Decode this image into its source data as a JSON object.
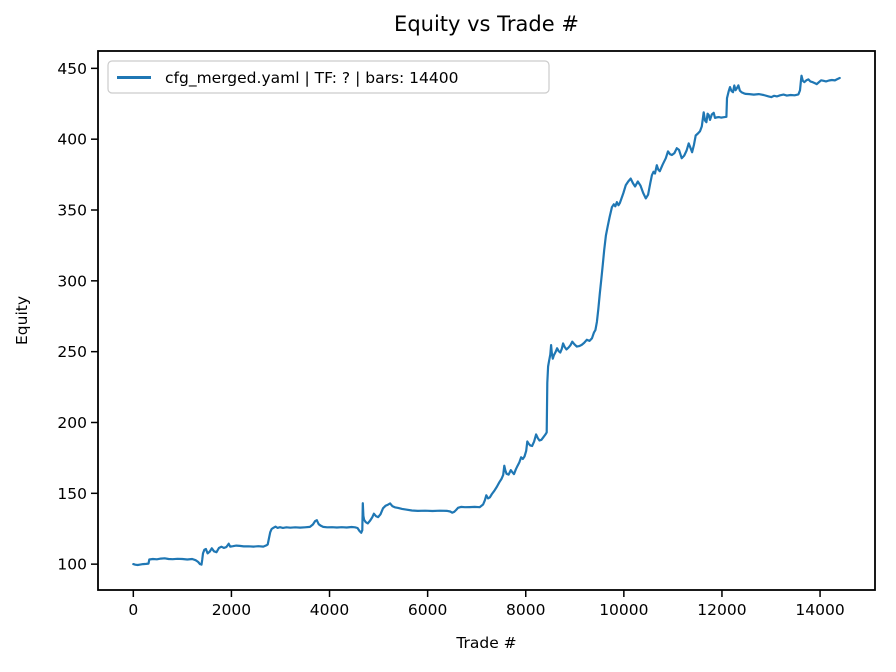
{
  "colors": {
    "line": "#1f77b4",
    "spine": "#000000",
    "text": "#000000",
    "legend_border": "#cccccc",
    "background": "#ffffff"
  },
  "chart_data": {
    "type": "line",
    "title": "Equity vs Trade #",
    "xlabel": "Trade #",
    "ylabel": "Equity",
    "grid": false,
    "legend_position": "upper-left",
    "legend": [
      {
        "label": "cfg_merged.yaml | TF: ? | bars: 14400",
        "color": "#1f77b4"
      }
    ],
    "xlim": [
      -720,
      15120
    ],
    "ylim": [
      81.75,
      462.25
    ],
    "x_ticks": [
      0,
      2000,
      4000,
      6000,
      8000,
      10000,
      12000,
      14000
    ],
    "y_ticks": [
      100,
      150,
      200,
      250,
      300,
      350,
      400,
      450
    ],
    "series": [
      {
        "name": "cfg_merged.yaml | TF: ? | bars: 14400",
        "color": "#1f77b4",
        "points": [
          [
            0,
            100
          ],
          [
            40,
            99.6
          ],
          [
            90,
            99.4
          ],
          [
            140,
            99.7
          ],
          [
            200,
            100
          ],
          [
            260,
            100.2
          ],
          [
            310,
            100.4
          ],
          [
            325,
            103.3
          ],
          [
            400,
            103.6
          ],
          [
            480,
            103.4
          ],
          [
            560,
            103.9
          ],
          [
            640,
            104.1
          ],
          [
            720,
            103.6
          ],
          [
            800,
            103.5
          ],
          [
            900,
            103.8
          ],
          [
            1000,
            103.6
          ],
          [
            1100,
            103.3
          ],
          [
            1200,
            103.6
          ],
          [
            1270,
            102.8
          ],
          [
            1320,
            101.6
          ],
          [
            1360,
            100
          ],
          [
            1390,
            99.7
          ],
          [
            1405,
            103
          ],
          [
            1420,
            107.6
          ],
          [
            1450,
            110.2
          ],
          [
            1480,
            110.7
          ],
          [
            1515,
            107.6
          ],
          [
            1560,
            108.9
          ],
          [
            1600,
            111.2
          ],
          [
            1645,
            109.1
          ],
          [
            1695,
            108.4
          ],
          [
            1745,
            111.4
          ],
          [
            1795,
            112.3
          ],
          [
            1845,
            111.5
          ],
          [
            1895,
            112
          ],
          [
            1945,
            114.4
          ],
          [
            1975,
            112.4
          ],
          [
            2030,
            112.7
          ],
          [
            2100,
            113.1
          ],
          [
            2170,
            112.9
          ],
          [
            2250,
            112.5
          ],
          [
            2350,
            112.6
          ],
          [
            2450,
            112.4
          ],
          [
            2550,
            112.7
          ],
          [
            2650,
            112.4
          ],
          [
            2710,
            113.2
          ],
          [
            2740,
            113.9
          ],
          [
            2765,
            118
          ],
          [
            2790,
            122.5
          ],
          [
            2820,
            124.8
          ],
          [
            2860,
            125.7
          ],
          [
            2900,
            126.5
          ],
          [
            2940,
            125.6
          ],
          [
            2990,
            126.1
          ],
          [
            3050,
            125.6
          ],
          [
            3120,
            126
          ],
          [
            3200,
            125.7
          ],
          [
            3300,
            126
          ],
          [
            3400,
            125.8
          ],
          [
            3500,
            126
          ],
          [
            3600,
            126.3
          ],
          [
            3660,
            128
          ],
          [
            3705,
            130.4
          ],
          [
            3740,
            131
          ],
          [
            3780,
            128.2
          ],
          [
            3825,
            127.1
          ],
          [
            3870,
            126.3
          ],
          [
            3950,
            126
          ],
          [
            4050,
            126.1
          ],
          [
            4150,
            125.9
          ],
          [
            4250,
            126.1
          ],
          [
            4350,
            125.9
          ],
          [
            4450,
            126.2
          ],
          [
            4520,
            126
          ],
          [
            4570,
            125.5
          ],
          [
            4610,
            123.4
          ],
          [
            4645,
            122.1
          ],
          [
            4668,
            124
          ],
          [
            4678,
            143
          ],
          [
            4690,
            134
          ],
          [
            4705,
            131.4
          ],
          [
            4740,
            129.6
          ],
          [
            4780,
            128.8
          ],
          [
            4830,
            130.8
          ],
          [
            4870,
            133
          ],
          [
            4905,
            135.6
          ],
          [
            4945,
            133.9
          ],
          [
            4990,
            133.2
          ],
          [
            5040,
            135.2
          ],
          [
            5090,
            139.4
          ],
          [
            5140,
            141.2
          ],
          [
            5190,
            142
          ],
          [
            5235,
            142.9
          ],
          [
            5280,
            141
          ],
          [
            5330,
            140.1
          ],
          [
            5400,
            139.7
          ],
          [
            5480,
            139
          ],
          [
            5560,
            138.5
          ],
          [
            5680,
            137.9
          ],
          [
            5800,
            137.6
          ],
          [
            5950,
            137.7
          ],
          [
            6100,
            137.5
          ],
          [
            6250,
            137.7
          ],
          [
            6400,
            137.6
          ],
          [
            6460,
            137.2
          ],
          [
            6500,
            136.3
          ],
          [
            6540,
            136.9
          ],
          [
            6580,
            138.2
          ],
          [
            6620,
            139.8
          ],
          [
            6680,
            140.4
          ],
          [
            6760,
            140.2
          ],
          [
            6860,
            140.3
          ],
          [
            6960,
            140.4
          ],
          [
            7060,
            140.2
          ],
          [
            7130,
            142.1
          ],
          [
            7165,
            145
          ],
          [
            7195,
            148.6
          ],
          [
            7230,
            146.4
          ],
          [
            7270,
            147.2
          ],
          [
            7310,
            149.5
          ],
          [
            7360,
            151.8
          ],
          [
            7410,
            154.5
          ],
          [
            7460,
            157.8
          ],
          [
            7505,
            160.2
          ],
          [
            7540,
            163
          ],
          [
            7562,
            169.5
          ],
          [
            7585,
            166
          ],
          [
            7610,
            163.8
          ],
          [
            7650,
            163.2
          ],
          [
            7695,
            166.4
          ],
          [
            7730,
            164.8
          ],
          [
            7760,
            163.6
          ],
          [
            7800,
            167
          ],
          [
            7835,
            169.5
          ],
          [
            7870,
            172
          ],
          [
            7905,
            175.4
          ],
          [
            7940,
            174.2
          ],
          [
            7975,
            176
          ],
          [
            8010,
            180
          ],
          [
            8032,
            186.6
          ],
          [
            8060,
            185
          ],
          [
            8090,
            183.8
          ],
          [
            8130,
            183.4
          ],
          [
            8170,
            186.5
          ],
          [
            8212,
            191.6
          ],
          [
            8245,
            189
          ],
          [
            8280,
            187.3
          ],
          [
            8320,
            187.8
          ],
          [
            8360,
            189.6
          ],
          [
            8400,
            191.5
          ],
          [
            8428,
            193
          ],
          [
            8440,
            228
          ],
          [
            8455,
            239.5
          ],
          [
            8475,
            243.2
          ],
          [
            8500,
            248
          ],
          [
            8516,
            254.6
          ],
          [
            8532,
            249
          ],
          [
            8552,
            245
          ],
          [
            8575,
            247.5
          ],
          [
            8605,
            249.5
          ],
          [
            8640,
            252.4
          ],
          [
            8672,
            250.3
          ],
          [
            8705,
            249.4
          ],
          [
            8735,
            252
          ],
          [
            8762,
            255.8
          ],
          [
            8795,
            253.2
          ],
          [
            8830,
            251.6
          ],
          [
            8870,
            252.8
          ],
          [
            8910,
            254.5
          ],
          [
            8950,
            257
          ],
          [
            8990,
            255.3
          ],
          [
            9040,
            253.6
          ],
          [
            9090,
            253.9
          ],
          [
            9140,
            254.8
          ],
          [
            9190,
            256.2
          ],
          [
            9245,
            258.4
          ],
          [
            9300,
            257.6
          ],
          [
            9350,
            259.5
          ],
          [
            9392,
            263.6
          ],
          [
            9420,
            265.2
          ],
          [
            9450,
            271
          ],
          [
            9480,
            280
          ],
          [
            9510,
            291
          ],
          [
            9540,
            301
          ],
          [
            9570,
            311.5
          ],
          [
            9600,
            321.8
          ],
          [
            9635,
            332
          ],
          [
            9670,
            338.5
          ],
          [
            9710,
            345
          ],
          [
            9756,
            352
          ],
          [
            9795,
            354
          ],
          [
            9825,
            352.6
          ],
          [
            9858,
            355.6
          ],
          [
            9890,
            353.4
          ],
          [
            9920,
            355
          ],
          [
            9945,
            357.6
          ],
          [
            9990,
            362
          ],
          [
            10040,
            367.6
          ],
          [
            10090,
            370.2
          ],
          [
            10140,
            372.2
          ],
          [
            10185,
            369
          ],
          [
            10230,
            366.6
          ],
          [
            10285,
            370.1
          ],
          [
            10340,
            367.2
          ],
          [
            10395,
            362
          ],
          [
            10448,
            358.2
          ],
          [
            10495,
            360.8
          ],
          [
            10540,
            369
          ],
          [
            10572,
            374.6
          ],
          [
            10605,
            377
          ],
          [
            10635,
            375.8
          ],
          [
            10672,
            381.6
          ],
          [
            10700,
            378.6
          ],
          [
            10732,
            377.4
          ],
          [
            10790,
            382
          ],
          [
            10855,
            386.6
          ],
          [
            10900,
            391.4
          ],
          [
            10940,
            389.4
          ],
          [
            10980,
            388.8
          ],
          [
            11030,
            390.2
          ],
          [
            11080,
            393.6
          ],
          [
            11125,
            392.4
          ],
          [
            11180,
            386.6
          ],
          [
            11230,
            388.4
          ],
          [
            11280,
            392
          ],
          [
            11322,
            397
          ],
          [
            11357,
            394
          ],
          [
            11392,
            390.8
          ],
          [
            11430,
            396.2
          ],
          [
            11465,
            402.6
          ],
          [
            11510,
            404
          ],
          [
            11552,
            405.6
          ],
          [
            11590,
            409
          ],
          [
            11628,
            419
          ],
          [
            11655,
            413.2
          ],
          [
            11682,
            412
          ],
          [
            11707,
            418
          ],
          [
            11732,
            417
          ],
          [
            11757,
            413.6
          ],
          [
            11792,
            417.4
          ],
          [
            11832,
            418.6
          ],
          [
            11858,
            415
          ],
          [
            11890,
            415.4
          ],
          [
            11935,
            415.6
          ],
          [
            11980,
            415.2
          ],
          [
            12040,
            415.5
          ],
          [
            12090,
            415.8
          ],
          [
            12102,
            429
          ],
          [
            12135,
            433.6
          ],
          [
            12165,
            436.8
          ],
          [
            12195,
            434
          ],
          [
            12225,
            433.2
          ],
          [
            12252,
            437.9
          ],
          [
            12278,
            434.6
          ],
          [
            12305,
            436
          ],
          [
            12335,
            438
          ],
          [
            12365,
            434.2
          ],
          [
            12405,
            433
          ],
          [
            12445,
            432.4
          ],
          [
            12485,
            432
          ],
          [
            12560,
            431.8
          ],
          [
            12650,
            431.5
          ],
          [
            12750,
            431.8
          ],
          [
            12850,
            431.2
          ],
          [
            12950,
            430.2
          ],
          [
            13005,
            429.7
          ],
          [
            13065,
            430.6
          ],
          [
            13125,
            430.2
          ],
          [
            13185,
            431
          ],
          [
            13255,
            431.5
          ],
          [
            13325,
            430.8
          ],
          [
            13400,
            431.2
          ],
          [
            13480,
            431
          ],
          [
            13558,
            431.6
          ],
          [
            13592,
            434.5
          ],
          [
            13610,
            441
          ],
          [
            13622,
            444.8
          ],
          [
            13648,
            441.2
          ],
          [
            13680,
            440.3
          ],
          [
            13722,
            441.6
          ],
          [
            13762,
            442.2
          ],
          [
            13802,
            440.8
          ],
          [
            13852,
            440.2
          ],
          [
            13902,
            439.4
          ],
          [
            13932,
            438.9
          ],
          [
            13972,
            440.1
          ],
          [
            14022,
            441.6
          ],
          [
            14072,
            441.2
          ],
          [
            14122,
            440.8
          ],
          [
            14182,
            441.4
          ],
          [
            14242,
            441.8
          ],
          [
            14302,
            441.5
          ],
          [
            14352,
            442.4
          ],
          [
            14400,
            443.2
          ]
        ]
      }
    ]
  }
}
